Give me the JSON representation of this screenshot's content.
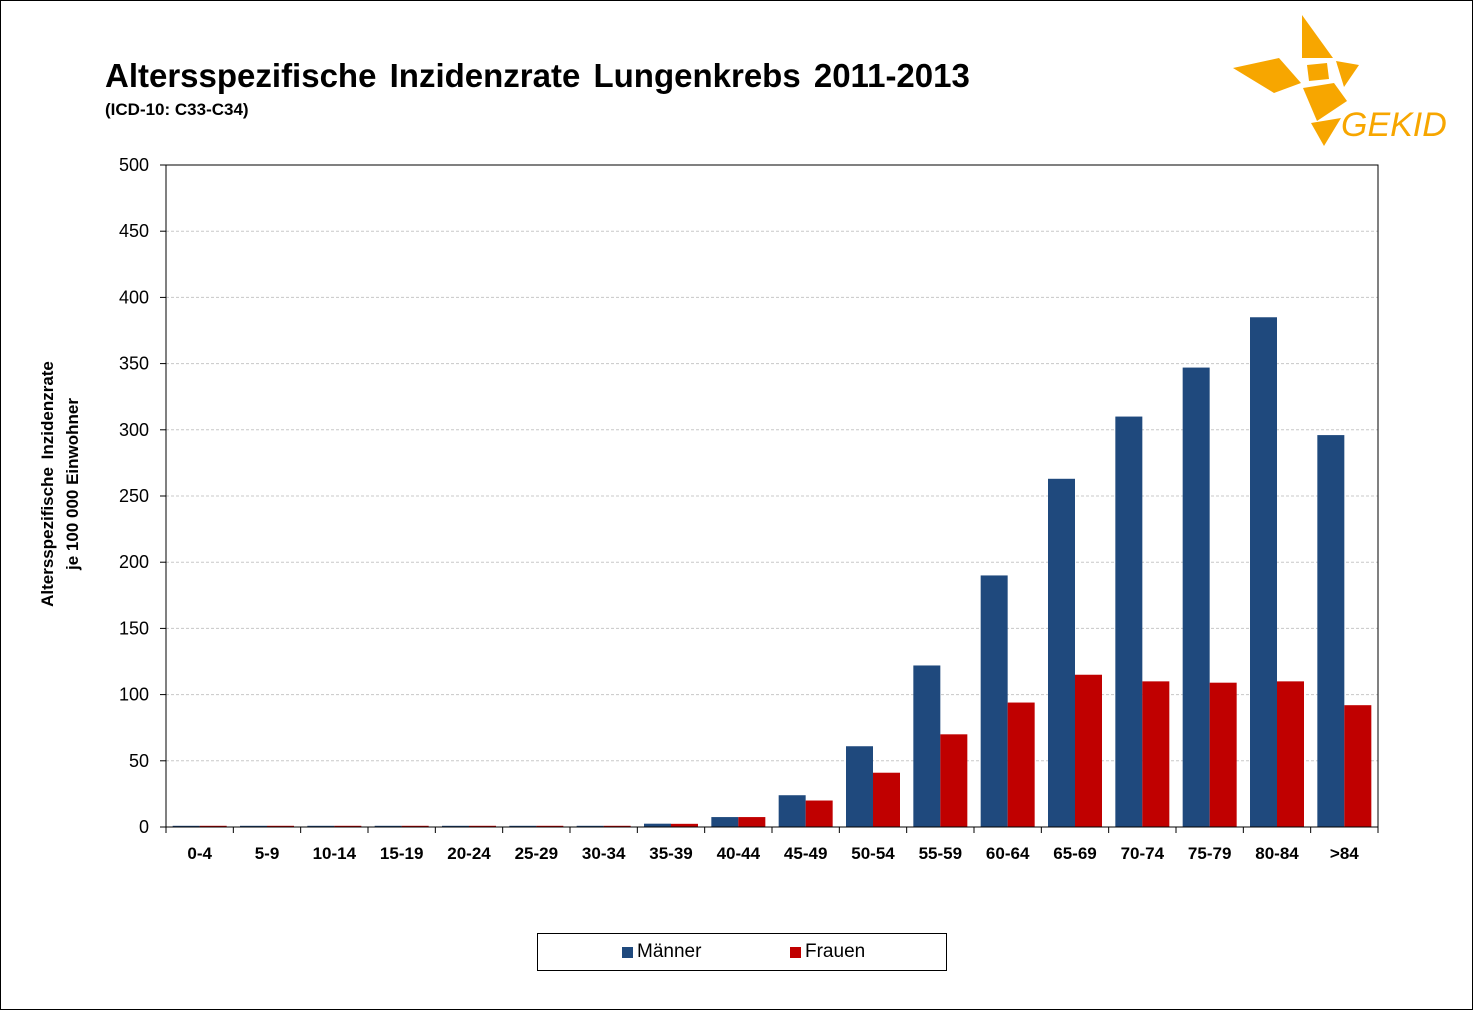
{
  "colors": {
    "men": "#1f497d",
    "women": "#c00000",
    "grid": "#c8c8c8",
    "logo": "#f7a600"
  },
  "logo": {
    "text": "GEKID"
  },
  "chart_data": {
    "type": "bar",
    "title": "Altersspezifische Inzidenzrate Lungenkrebs 2011-2013",
    "subtitle": "(ICD-10: C33-C34)",
    "xlabel": "",
    "ylabel_line1": "Altersspezifische Inzidenzrate",
    "ylabel_line2": "je 100 000 Einwohner",
    "ylim": [
      0,
      500
    ],
    "yticks": [
      0,
      50,
      100,
      150,
      200,
      250,
      300,
      350,
      400,
      450,
      500
    ],
    "grid": true,
    "legend_position": "bottom-center",
    "categories": [
      "0-4",
      "5-9",
      "10-14",
      "15-19",
      "20-24",
      "25-29",
      "30-34",
      "35-39",
      "40-44",
      "45-49",
      "50-54",
      "55-59",
      "60-64",
      "65-69",
      "70-74",
      "75-79",
      "80-84",
      ">84"
    ],
    "series": [
      {
        "name": "Männer",
        "values": [
          0.1,
          0.1,
          0.1,
          0.2,
          0.3,
          0.4,
          0.7,
          2.5,
          7.5,
          24,
          61,
          122,
          190,
          263,
          310,
          347,
          385,
          296
        ]
      },
      {
        "name": "Frauen",
        "values": [
          0.1,
          0.1,
          0.1,
          0.2,
          0.3,
          0.4,
          0.8,
          2.4,
          7.5,
          20,
          41,
          70,
          94,
          115,
          110,
          109,
          110,
          92
        ]
      }
    ]
  }
}
